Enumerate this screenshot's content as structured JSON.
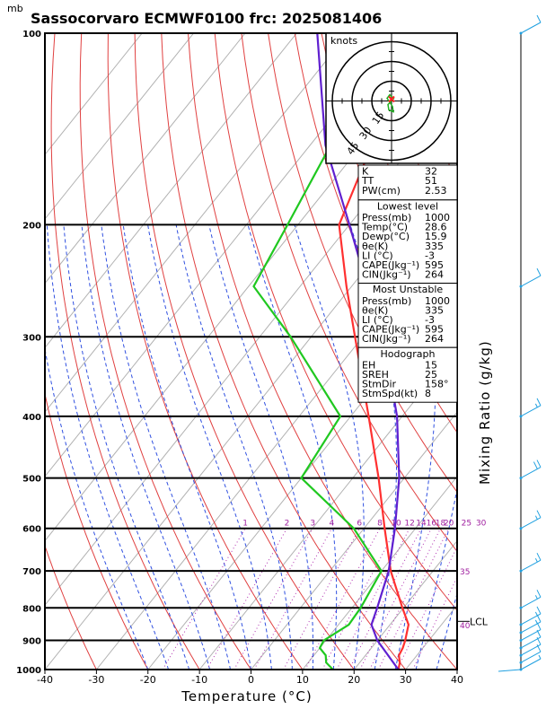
{
  "header": {
    "unit_label": "mb",
    "title": "Sassocorvaro ECMWF0100  frc: 2025081406"
  },
  "axes": {
    "xlabel": "Temperature (°C)",
    "mixing_ratio_label": "Mixing Ratio  (g/kg)",
    "x_ticks": [
      "-40",
      "-30",
      "-20",
      "-10",
      "0",
      "10",
      "20",
      "30",
      "40"
    ],
    "p_ticks": [
      "100",
      "200",
      "300",
      "400",
      "500",
      "600",
      "700",
      "800",
      "900",
      "1000"
    ],
    "mr_labels": [
      "1",
      "2",
      "3",
      "4",
      "6",
      "8",
      "10",
      "12",
      "14",
      "16",
      "18",
      "20",
      "25",
      "30"
    ],
    "mr_extra": [
      "35",
      "40"
    ],
    "lcl_label": "LCL"
  },
  "hodograph": {
    "unit": "knots",
    "ring_labels": [
      "15",
      "30",
      "45"
    ]
  },
  "indices": {
    "top": [
      {
        "label": "K",
        "value": "32"
      },
      {
        "label": "TT",
        "value": "51"
      },
      {
        "label": "PW(cm)",
        "value": "2.53"
      }
    ],
    "lowest": {
      "heading": "Lowest level",
      "rows": [
        {
          "label": "Press(mb)",
          "value": "1000"
        },
        {
          "label": "Temp(°C)",
          "value": "28.6"
        },
        {
          "label": "Dewp(°C)",
          "value": "15.9"
        },
        {
          "label": "θe(K)",
          "value": "335"
        },
        {
          "label": "LI (°C)",
          "value": "-3"
        },
        {
          "label": "CAPE(Jkg⁻¹)",
          "value": "595"
        },
        {
          "label": "CIN(Jkg⁻¹)",
          "value": "264"
        }
      ]
    },
    "unstable": {
      "heading": "Most Unstable",
      "rows": [
        {
          "label": "Press(mb)",
          "value": "1000"
        },
        {
          "label": "θe(K)",
          "value": "335"
        },
        {
          "label": "LI (°C)",
          "value": "-3"
        },
        {
          "label": "CAPE(Jkg⁻¹)",
          "value": "595"
        },
        {
          "label": "CIN(Jkg⁻¹)",
          "value": "264"
        }
      ]
    },
    "hodo": {
      "heading": "Hodograph",
      "rows": [
        {
          "label": "EH",
          "value": "15"
        },
        {
          "label": "SREH",
          "value": "25"
        },
        {
          "label": "StmDir",
          "value": "158°"
        },
        {
          "label": "StmSpd(kt)",
          "value": "8"
        }
      ]
    }
  },
  "colors": {
    "temperature": "#ff3030",
    "dewpoint": "#20c820",
    "parcel": "#6020d0",
    "isotherm": "#b0b0b0",
    "dry_adiabat": "#e04040",
    "moist_adiabat": "#3050e0",
    "mixing_ratio": "#b030b0",
    "barb": "#20a0e0"
  },
  "chart_data": {
    "type": "line",
    "title": "Sassocorvaro ECMWF0100  frc: 2025081406",
    "xlabel": "Temperature (°C)",
    "ylabel": "mb",
    "xlim": [
      -40,
      40
    ],
    "ylim": [
      1000,
      100
    ],
    "y_scale": "log",
    "series": [],
    "temperature": [
      [
        1000,
        28.6
      ],
      [
        975,
        27.8
      ],
      [
        950,
        26.5
      ],
      [
        925,
        26.1
      ],
      [
        900,
        25.4
      ],
      [
        850,
        23.6
      ],
      [
        800,
        19.8
      ],
      [
        700,
        11.8
      ],
      [
        600,
        4.0
      ],
      [
        500,
        -5.0
      ],
      [
        400,
        -16.5
      ],
      [
        300,
        -31.5
      ],
      [
        250,
        -41
      ],
      [
        200,
        -52
      ],
      [
        150,
        -58
      ],
      [
        100,
        -68
      ]
    ],
    "dewpoint": [
      [
        1000,
        15.9
      ],
      [
        975,
        13.5
      ],
      [
        950,
        12.3
      ],
      [
        925,
        10.0
      ],
      [
        900,
        9.6
      ],
      [
        850,
        12.0
      ],
      [
        800,
        11.7
      ],
      [
        700,
        10.0
      ],
      [
        600,
        -2.0
      ],
      [
        500,
        -20
      ],
      [
        400,
        -22
      ],
      [
        300,
        -44
      ],
      [
        250,
        -59
      ],
      [
        200,
        -62
      ],
      [
        150,
        -66
      ],
      [
        100,
        -72
      ]
    ],
    "parcel": [
      [
        1000,
        28.6
      ],
      [
        900,
        20.0
      ],
      [
        850,
        16.4
      ],
      [
        800,
        14.9
      ],
      [
        700,
        11.4
      ],
      [
        600,
        6.0
      ],
      [
        500,
        -1.0
      ],
      [
        400,
        -11
      ],
      [
        300,
        -26
      ],
      [
        250,
        -37
      ],
      [
        200,
        -50
      ],
      [
        150,
        -67
      ],
      [
        100,
        -86
      ]
    ],
    "lcl_pressure": 840,
    "hodograph_range_kt": 45,
    "wind_profile_kt": [
      {
        "p": 1000,
        "spd": 5
      },
      {
        "p": 975,
        "spd": 8
      },
      {
        "p": 950,
        "spd": 10
      },
      {
        "p": 925,
        "spd": 10
      },
      {
        "p": 900,
        "spd": 12
      },
      {
        "p": 875,
        "spd": 15
      },
      {
        "p": 850,
        "spd": 14
      },
      {
        "p": 800,
        "spd": 14
      },
      {
        "p": 700,
        "spd": 15
      },
      {
        "p": 600,
        "spd": 16
      },
      {
        "p": 500,
        "spd": 18
      },
      {
        "p": 400,
        "spd": 15
      },
      {
        "p": 250,
        "spd": 10
      },
      {
        "p": 100,
        "spd": 10
      }
    ],
    "grid": true
  }
}
